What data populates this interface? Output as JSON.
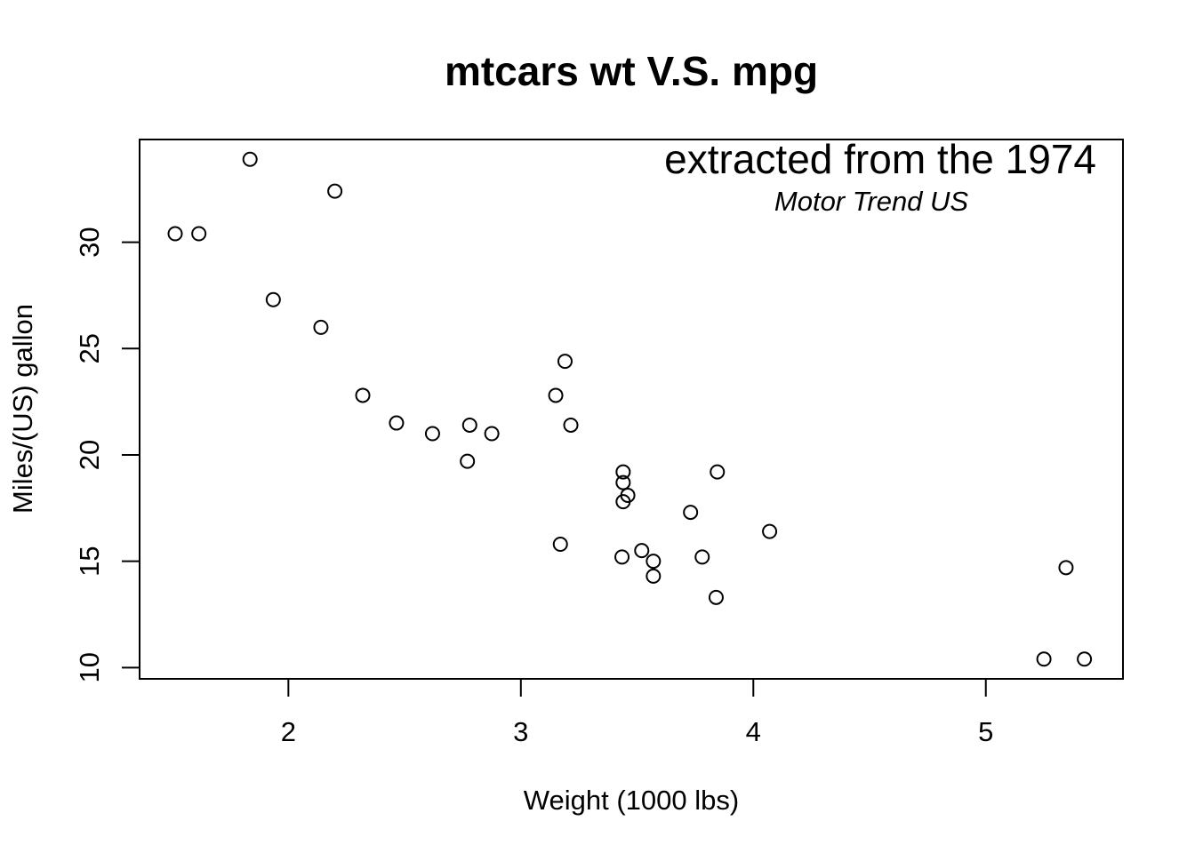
{
  "chart_data": {
    "type": "scatter",
    "title": "mtcars wt V.S. mpg",
    "xlabel": "Weight (1000 lbs)",
    "ylabel": "Miles/(US) gallon",
    "xlim": [
      1.36,
      5.59
    ],
    "ylim": [
      9.47,
      34.83
    ],
    "xticks": [
      2,
      3,
      4,
      5
    ],
    "yticks": [
      10,
      15,
      20,
      25,
      30
    ],
    "grid": false,
    "annotations": [
      "extracted from the 1974",
      "Motor Trend US"
    ],
    "points": [
      {
        "x": 2.62,
        "y": 21.0
      },
      {
        "x": 2.875,
        "y": 21.0
      },
      {
        "x": 2.32,
        "y": 22.8
      },
      {
        "x": 3.215,
        "y": 21.4
      },
      {
        "x": 3.44,
        "y": 18.7
      },
      {
        "x": 3.46,
        "y": 18.1
      },
      {
        "x": 3.57,
        "y": 14.3
      },
      {
        "x": 3.19,
        "y": 24.4
      },
      {
        "x": 3.15,
        "y": 22.8
      },
      {
        "x": 3.44,
        "y": 19.2
      },
      {
        "x": 3.44,
        "y": 17.8
      },
      {
        "x": 4.07,
        "y": 16.4
      },
      {
        "x": 3.73,
        "y": 17.3
      },
      {
        "x": 3.78,
        "y": 15.2
      },
      {
        "x": 5.25,
        "y": 10.4
      },
      {
        "x": 5.424,
        "y": 10.4
      },
      {
        "x": 5.345,
        "y": 14.7
      },
      {
        "x": 2.2,
        "y": 32.4
      },
      {
        "x": 1.615,
        "y": 30.4
      },
      {
        "x": 1.835,
        "y": 33.9
      },
      {
        "x": 2.465,
        "y": 21.5
      },
      {
        "x": 3.52,
        "y": 15.5
      },
      {
        "x": 3.435,
        "y": 15.2
      },
      {
        "x": 3.84,
        "y": 13.3
      },
      {
        "x": 3.845,
        "y": 19.2
      },
      {
        "x": 1.935,
        "y": 27.3
      },
      {
        "x": 2.14,
        "y": 26.0
      },
      {
        "x": 1.513,
        "y": 30.4
      },
      {
        "x": 3.17,
        "y": 15.8
      },
      {
        "x": 2.77,
        "y": 19.7
      },
      {
        "x": 3.57,
        "y": 15.0
      },
      {
        "x": 2.78,
        "y": 21.4
      }
    ]
  }
}
